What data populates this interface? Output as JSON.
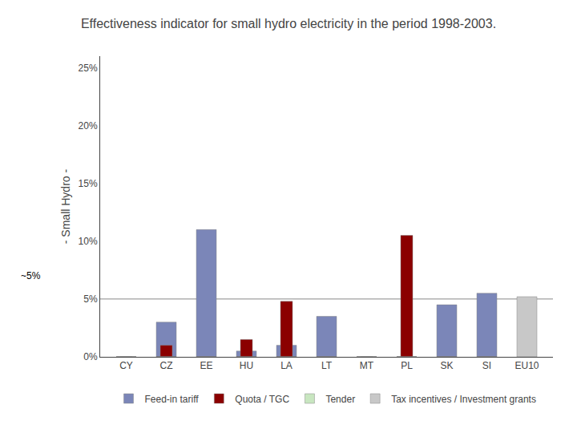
{
  "chart_data": {
    "type": "bar",
    "title": "Effectiveness indicator for small hydro electricity in the period 1998-2003.",
    "ylabel": "- Small Hydro -",
    "categories": [
      "CY",
      "CZ",
      "EE",
      "HU",
      "LA",
      "LT",
      "MT",
      "PL",
      "SK",
      "SI",
      "EU10"
    ],
    "series": [
      {
        "name": "Feed-in tariff",
        "color": "#7b86b8",
        "values": [
          0.0,
          0.03,
          0.11,
          0.005,
          0.01,
          0.035,
          0.0,
          0.0,
          0.045,
          0.055,
          0.0
        ]
      },
      {
        "name": "Quota / TGC",
        "color": "#8b0000",
        "values": [
          0.0,
          0.01,
          0.0,
          0.015,
          0.048,
          0.0,
          0.0,
          0.105,
          0.0,
          0.0,
          0.0
        ]
      },
      {
        "name": "Tender",
        "color": "#c8e6c0",
        "values": [
          0.0,
          0.0,
          0.0,
          0.0,
          0.0,
          0.0,
          0.0,
          0.0,
          0.0,
          0.0,
          0.0
        ]
      },
      {
        "name": "Tax incentives / Investment grants",
        "color": "#c8c8c8",
        "values": [
          0.0,
          0.0,
          0.0,
          0.0,
          0.0,
          0.0,
          0.0,
          0.0,
          0.0,
          0.0,
          0.052
        ]
      }
    ],
    "ylim": [
      0,
      0.26
    ],
    "yticks": [
      {
        "value": 0.0,
        "label": "0%"
      },
      {
        "value": 0.05,
        "label": "5%"
      },
      {
        "value": 0.1,
        "label": "10%"
      },
      {
        "value": 0.15,
        "label": "15%"
      },
      {
        "value": 0.2,
        "label": "20%"
      },
      {
        "value": 0.25,
        "label": "25%"
      }
    ],
    "grid": false,
    "legend": "bottom",
    "reference_line": 0.05,
    "annotations": [
      {
        "text": "~5%",
        "y": 0.07
      }
    ]
  }
}
